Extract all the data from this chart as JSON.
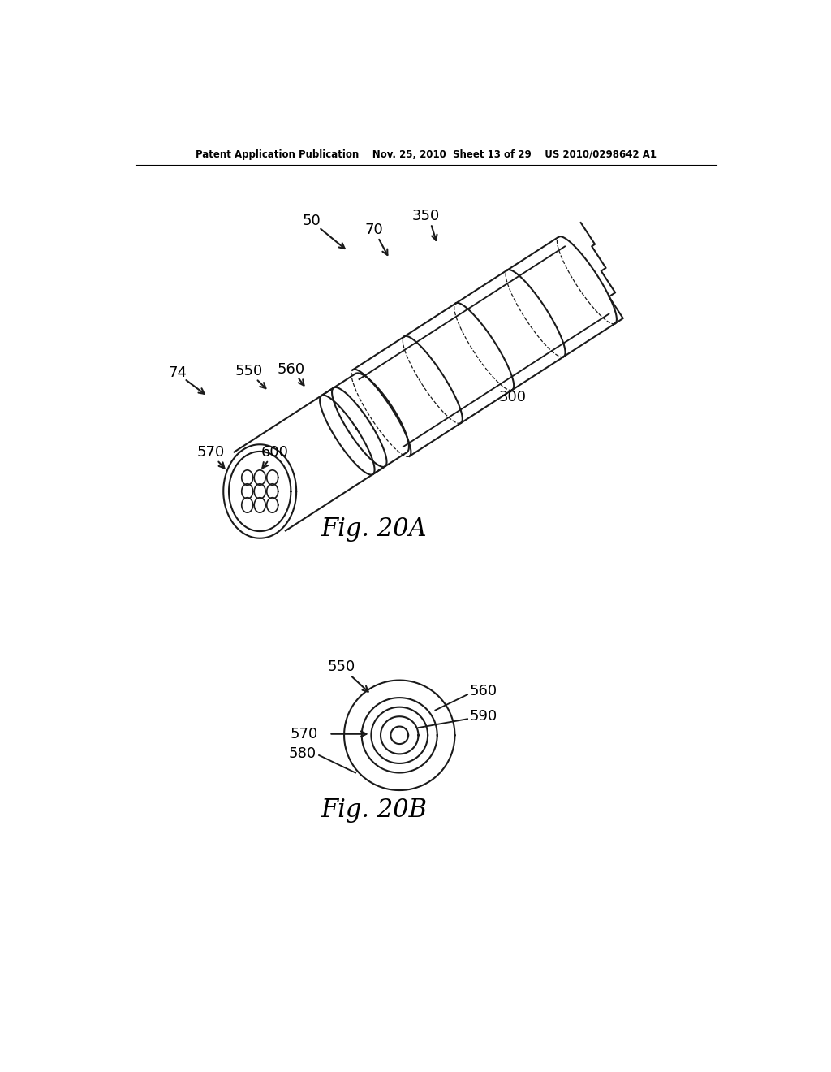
{
  "background_color": "#ffffff",
  "header_text": "Patent Application Publication    Nov. 25, 2010  Sheet 13 of 29    US 2010/0298642 A1",
  "fig20a_caption": "Fig. 20A",
  "fig20b_caption": "Fig. 20B",
  "line_color": "#1a1a1a",
  "line_width": 1.5
}
